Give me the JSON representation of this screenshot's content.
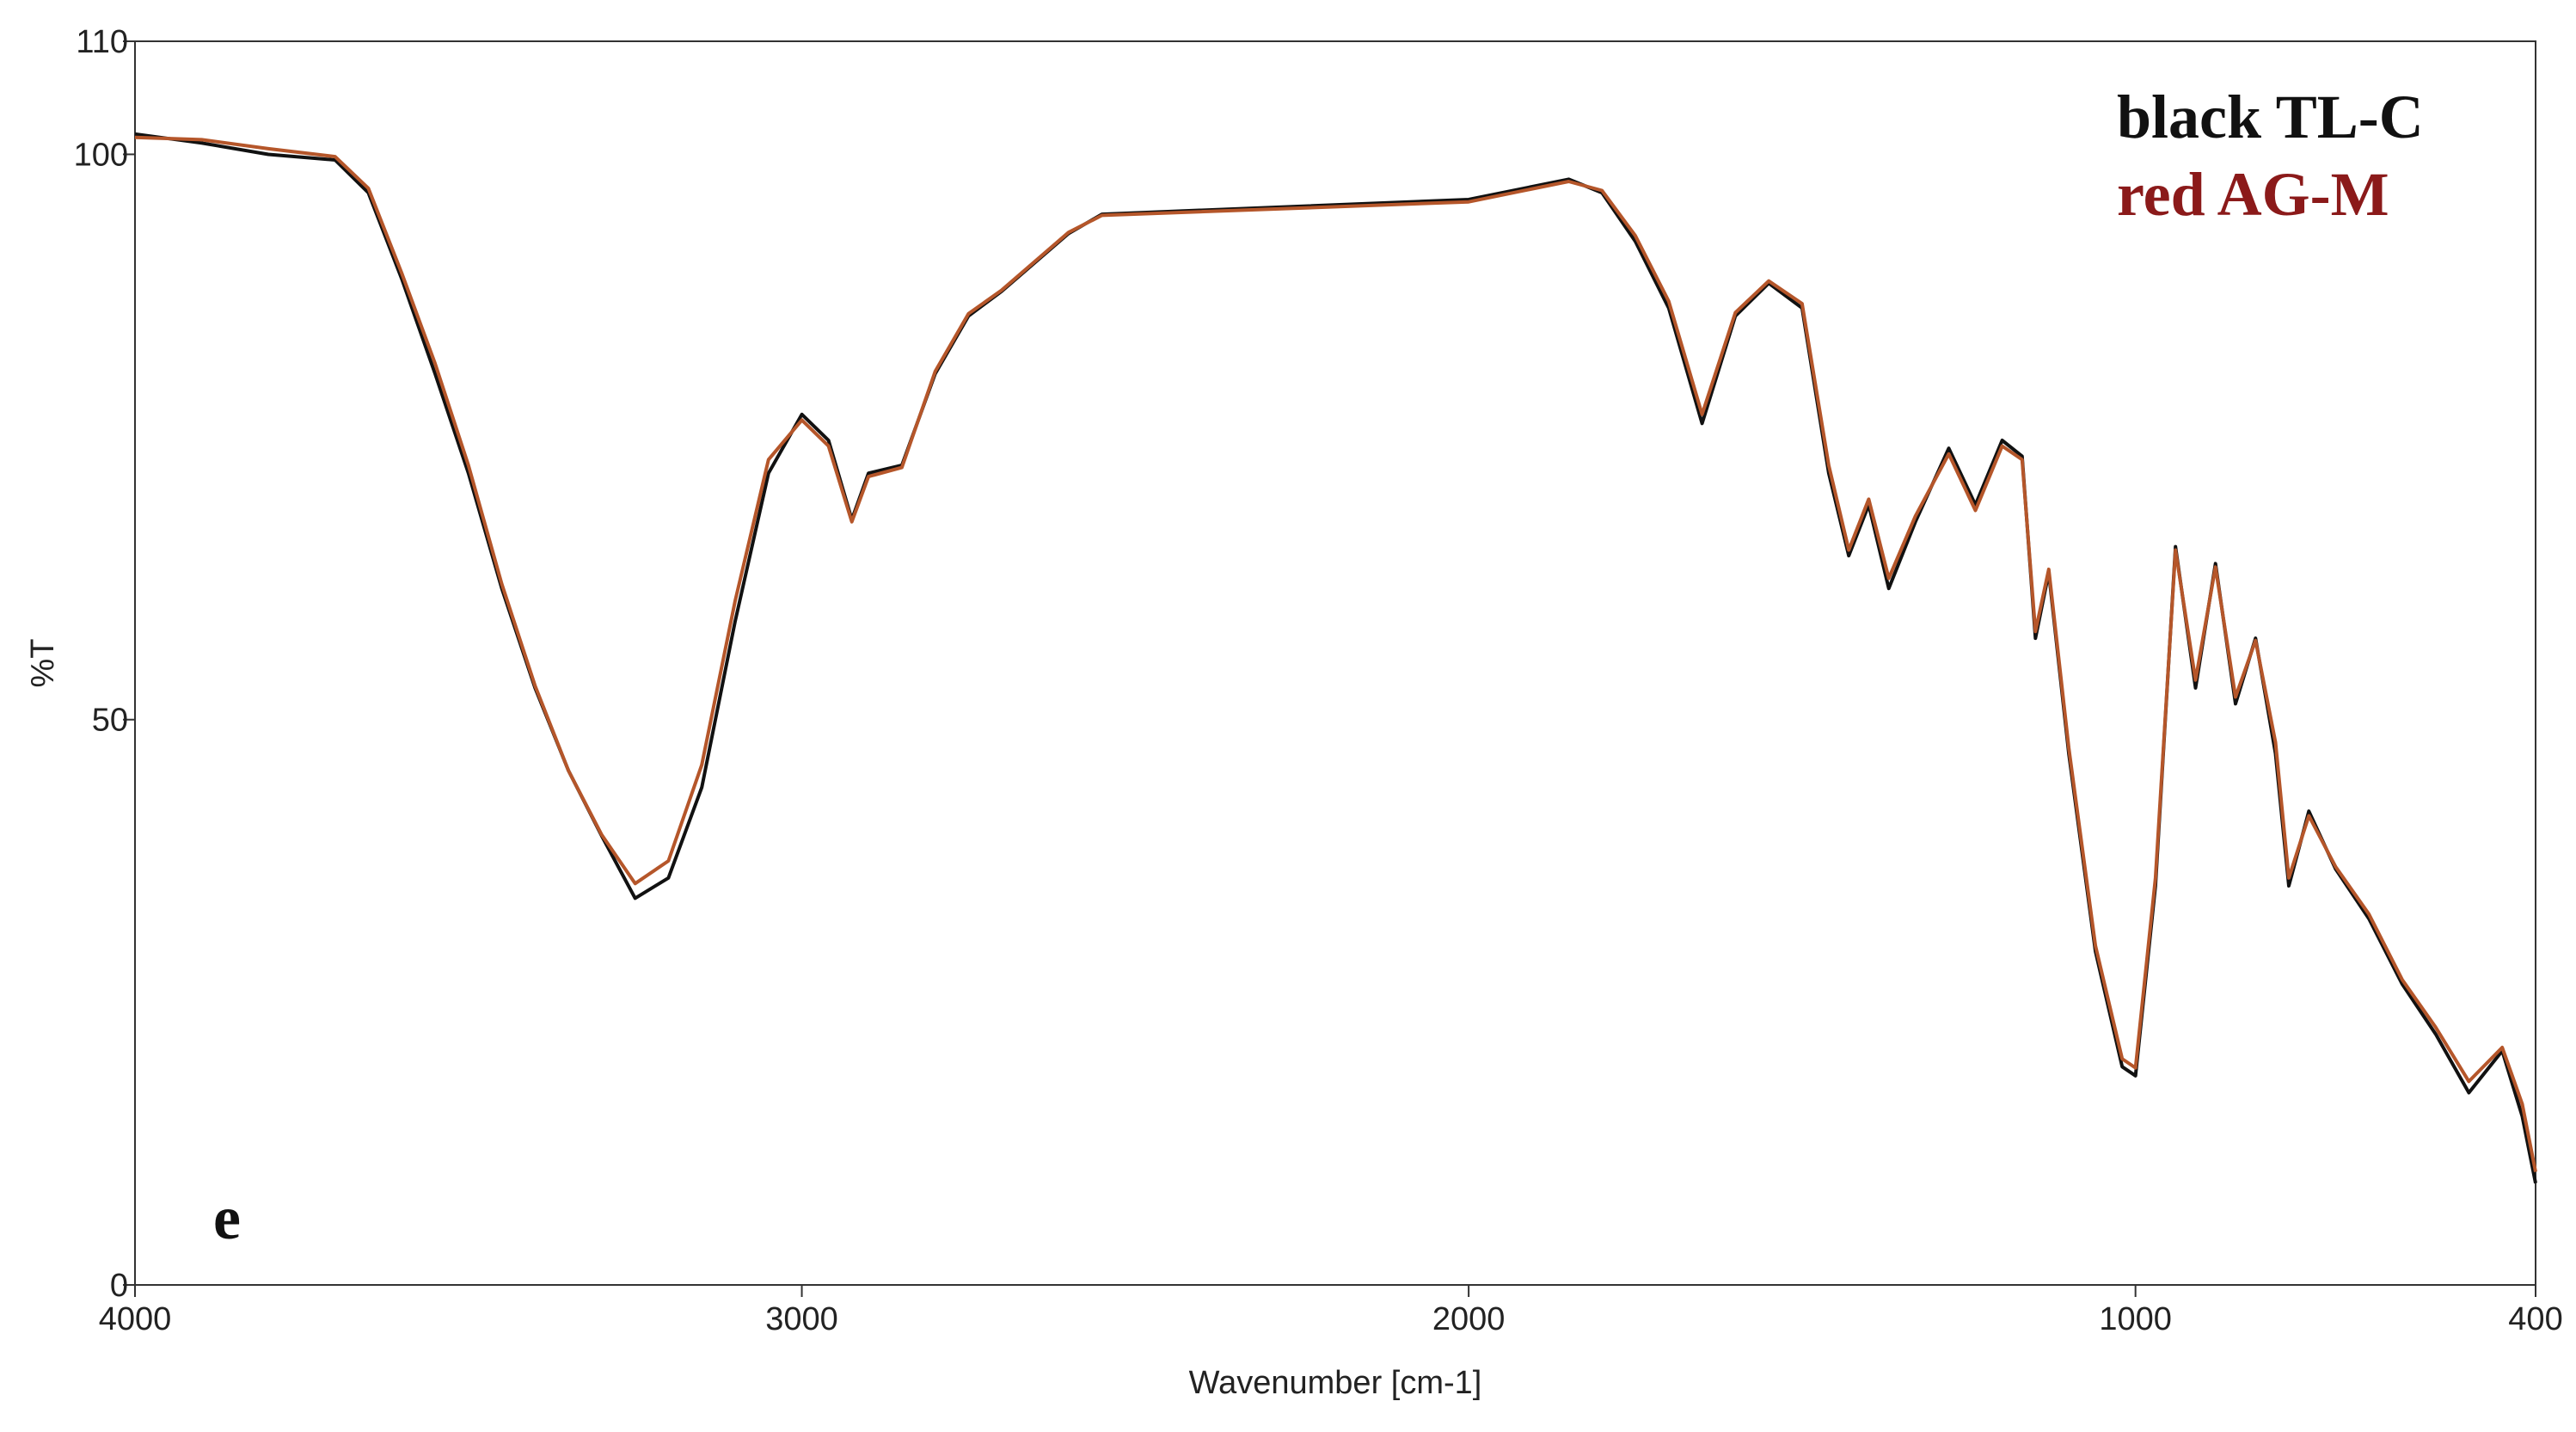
{
  "chart_data": {
    "type": "line",
    "xlabel": "Wavenumber [cm-1]",
    "ylabel": "%T",
    "annotation": "e",
    "x": [
      4000,
      3900,
      3800,
      3700,
      3650,
      3600,
      3550,
      3500,
      3450,
      3400,
      3350,
      3300,
      3250,
      3200,
      3150,
      3100,
      3050,
      3000,
      2960,
      2925,
      2900,
      2850,
      2800,
      2750,
      2700,
      2600,
      2550,
      2000,
      1850,
      1800,
      1750,
      1700,
      1650,
      1600,
      1550,
      1500,
      1460,
      1430,
      1400,
      1370,
      1330,
      1280,
      1240,
      1200,
      1170,
      1150,
      1130,
      1100,
      1060,
      1020,
      1000,
      970,
      940,
      910,
      880,
      850,
      820,
      790,
      770,
      740,
      700,
      650,
      600,
      550,
      500,
      450,
      420,
      400
    ],
    "series": [
      {
        "name": "black TL-C",
        "color": "#111111",
        "values": [
          101.8,
          101,
          100,
          99.5,
          96.6,
          89,
          80.6,
          71.8,
          61.6,
          52.8,
          45.5,
          39.7,
          34.2,
          36,
          44,
          58.7,
          71.8,
          77,
          74.7,
          67.7,
          71.8,
          72.5,
          80.6,
          85.7,
          87.9,
          93,
          94.7,
          96,
          97.8,
          96.6,
          92.3,
          86.4,
          76.2,
          85.7,
          88.6,
          86.4,
          71.8,
          64.5,
          69,
          61.6,
          67.5,
          74,
          69,
          74.7,
          73.3,
          57.2,
          63,
          47,
          29.5,
          19.3,
          18.5,
          35.3,
          65.3,
          52.8,
          63.8,
          51.4,
          57.2,
          47,
          35.3,
          41.9,
          36.8,
          32.4,
          26.6,
          22.2,
          17,
          20.7,
          14.9,
          9
        ]
      },
      {
        "name": "red AG-M",
        "color": "#b5562a",
        "values": [
          101.5,
          101.3,
          100.5,
          99.8,
          97,
          89.5,
          81.5,
          72.5,
          62,
          53,
          45.5,
          39.8,
          35.5,
          37.5,
          46,
          60.5,
          73,
          76.5,
          74.2,
          67.5,
          71.5,
          72.3,
          80.8,
          85.9,
          88,
          93.1,
          94.6,
          95.8,
          97.6,
          96.8,
          92.8,
          87,
          77,
          86,
          88.8,
          86.8,
          72.5,
          65,
          69.5,
          62.5,
          68,
          73.5,
          68.5,
          74.2,
          73,
          57.8,
          63.3,
          47.5,
          30,
          20,
          19.2,
          36,
          65,
          53.5,
          63.5,
          52,
          57,
          48,
          36,
          41.5,
          37,
          32.8,
          27,
          22.8,
          18,
          21,
          16,
          10
        ]
      }
    ],
    "xlim": [
      4000,
      400
    ],
    "xticks": [
      4000,
      3000,
      2000,
      1000,
      400
    ],
    "ylim": [
      0,
      110
    ],
    "yticks": [
      0,
      50,
      100,
      110
    ],
    "legend": "upper right",
    "grid": false
  }
}
